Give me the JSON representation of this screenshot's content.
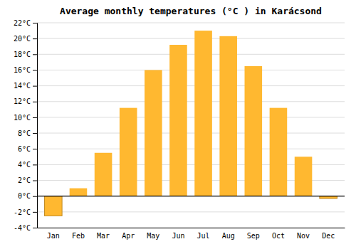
{
  "chart_data": {
    "type": "bar",
    "title": "Average monthly temperatures (°C ) in Karácsond",
    "categories": [
      "Jan",
      "Feb",
      "Mar",
      "Apr",
      "May",
      "Jun",
      "Jul",
      "Aug",
      "Sep",
      "Oct",
      "Nov",
      "Dec"
    ],
    "values": [
      -2.5,
      1.0,
      5.5,
      11.2,
      16.0,
      19.2,
      21.0,
      20.3,
      16.5,
      11.2,
      5.0,
      -0.3
    ],
    "color": "#FFB830",
    "ylim": [
      -4,
      22
    ],
    "yticks": [
      {
        "value": -4,
        "label": "-4°C"
      },
      {
        "value": -2,
        "label": "-2°C"
      },
      {
        "value": 0,
        "label": "0°C"
      },
      {
        "value": 2,
        "label": "2°C"
      },
      {
        "value": 4,
        "label": "4°C"
      },
      {
        "value": 6,
        "label": "6°C"
      },
      {
        "value": 8,
        "label": "8°C"
      },
      {
        "value": 10,
        "label": "10°C"
      },
      {
        "value": 12,
        "label": "12°C"
      },
      {
        "value": 14,
        "label": "14°C"
      },
      {
        "value": 16,
        "label": "16°C"
      },
      {
        "value": 18,
        "label": "18°C"
      },
      {
        "value": 20,
        "label": "20°C"
      },
      {
        "value": 22,
        "label": "22°C"
      }
    ],
    "grid": true
  }
}
